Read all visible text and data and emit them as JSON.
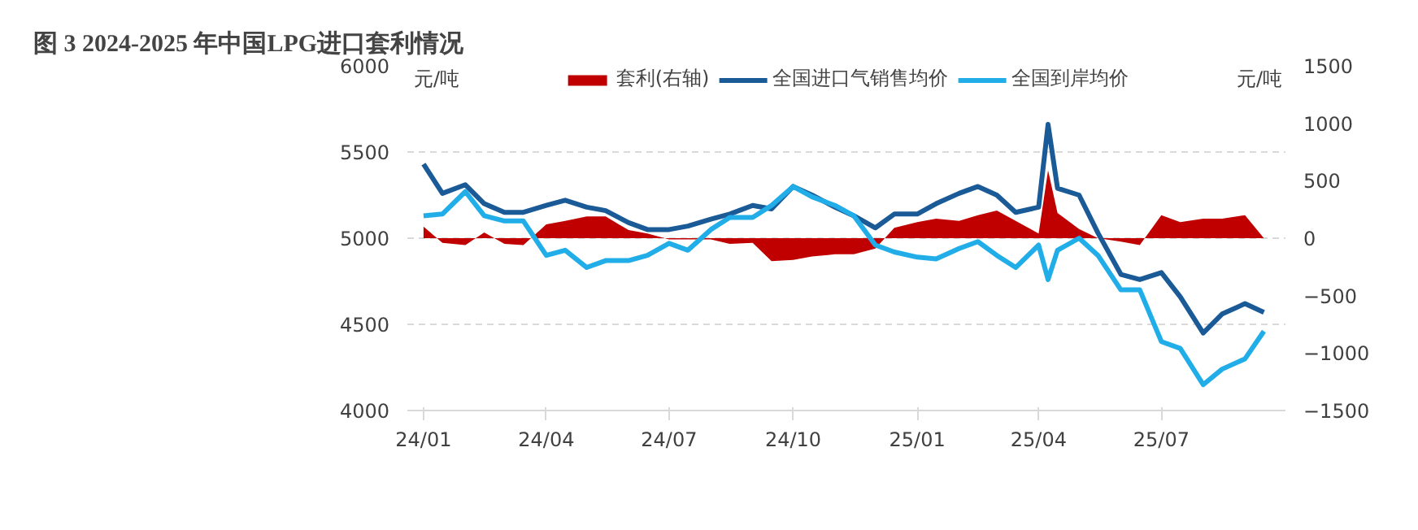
{
  "chart_data": {
    "type": "line",
    "title": "图 3 2024-2025 年中国LPG进口套利情况",
    "ylabel": "元/吨",
    "y2label": "元/吨",
    "x": [
      "2024-01-01",
      "2024-01-15",
      "2024-02-01",
      "2024-02-15",
      "2024-03-01",
      "2024-03-15",
      "2024-04-01",
      "2024-04-15",
      "2024-05-01",
      "2024-05-15",
      "2024-06-01",
      "2024-06-15",
      "2024-07-01",
      "2024-07-15",
      "2024-08-01",
      "2024-08-15",
      "2024-09-01",
      "2024-09-15",
      "2024-10-01",
      "2024-10-15",
      "2024-11-01",
      "2024-11-15",
      "2024-12-01",
      "2024-12-15",
      "2025-01-01",
      "2025-01-15",
      "2025-02-01",
      "2025-02-15",
      "2025-03-01",
      "2025-03-15",
      "2025-04-01",
      "2025-04-08",
      "2025-04-15",
      "2025-05-01",
      "2025-05-15",
      "2025-06-01",
      "2025-06-15",
      "2025-07-01",
      "2025-07-15",
      "2025-08-01",
      "2025-08-15",
      "2025-09-01",
      "2025-09-15"
    ],
    "series": [
      {
        "name": "套利(右轴)",
        "type": "area",
        "axis": "y2",
        "color": "#c00000",
        "values": [
          100,
          -40,
          -60,
          50,
          -50,
          -60,
          120,
          150,
          190,
          190,
          70,
          40,
          -10,
          -10,
          -10,
          -50,
          -40,
          -200,
          -190,
          -160,
          -140,
          -140,
          -90,
          90,
          140,
          170,
          150,
          200,
          240,
          150,
          40,
          590,
          220,
          80,
          0,
          -30,
          -60,
          200,
          140,
          170,
          170,
          200,
          0
        ]
      },
      {
        "name": "全国进口气销售均价",
        "color": "#1a5a96",
        "values": [
          5430,
          5260,
          5310,
          5200,
          5150,
          5150,
          5190,
          5220,
          5180,
          5160,
          5090,
          5050,
          5050,
          5070,
          5110,
          5140,
          5190,
          5170,
          5300,
          5250,
          5180,
          5130,
          5060,
          5140,
          5140,
          5200,
          5260,
          5300,
          5250,
          5150,
          5180,
          5660,
          5290,
          5250,
          5030,
          4790,
          4760,
          4800,
          4660,
          4450,
          4560,
          4620,
          4570
        ]
      },
      {
        "name": "全国到岸均价",
        "color": "#21aee8",
        "values": [
          5130,
          5140,
          5270,
          5130,
          5100,
          5100,
          4900,
          4930,
          4830,
          4870,
          4870,
          4900,
          4970,
          4930,
          5050,
          5120,
          5120,
          5190,
          5300,
          5240,
          5190,
          5130,
          4960,
          4920,
          4890,
          4880,
          4940,
          4980,
          4900,
          4830,
          4960,
          4760,
          4930,
          5000,
          4900,
          4700,
          4700,
          4400,
          4360,
          4150,
          4240,
          4300,
          4460
        ]
      }
    ],
    "xlim": [
      "2023-12-20",
      "2025-10-01"
    ],
    "xticks": [
      {
        "value": "2024-01",
        "label": "24/01"
      },
      {
        "value": "2024-04",
        "label": "24/04"
      },
      {
        "value": "2024-07",
        "label": "24/07"
      },
      {
        "value": "2024-10",
        "label": "24/10"
      },
      {
        "value": "2025-01",
        "label": "25/01"
      },
      {
        "value": "2025-04",
        "label": "25/04"
      },
      {
        "value": "2025-07",
        "label": "25/07"
      }
    ],
    "ylim": [
      4000,
      6000
    ],
    "yticks": [
      4000,
      4500,
      5000,
      5500,
      6000
    ],
    "y2lim": [
      -1500,
      1500
    ],
    "y2ticks": [
      -1500,
      -1000,
      -500,
      0,
      500,
      1000,
      1500
    ],
    "grid": "y",
    "legend": "top",
    "line_style": "solid"
  }
}
